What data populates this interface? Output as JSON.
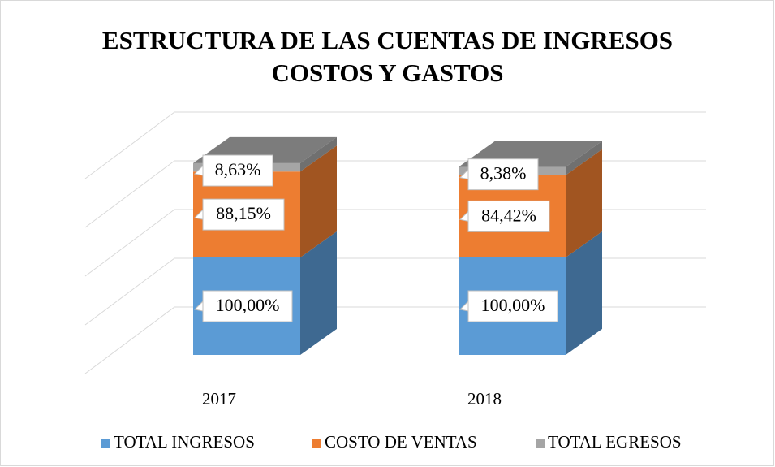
{
  "chart_data": {
    "type": "bar3d_stacked",
    "title": "ESTRUCTURA DE LAS CUENTAS DE INGRESOS COSTOS Y GASTOS",
    "categories": [
      "2017",
      "2018"
    ],
    "series": [
      {
        "name": "TOTAL INGRESOS",
        "color": "#5b9bd5",
        "values": [
          100.0,
          100.0
        ],
        "value_labels": [
          "100,00%",
          "100,00%"
        ]
      },
      {
        "name": "COSTO DE VENTAS",
        "color": "#ed7d31",
        "values": [
          88.15,
          84.42
        ],
        "value_labels": [
          "88,15%",
          "84,42%"
        ]
      },
      {
        "name": "TOTAL EGRESOS",
        "color": "#a5a5a5",
        "values": [
          8.63,
          8.38
        ],
        "value_labels": [
          "8,63%",
          "8,38%"
        ]
      }
    ],
    "ylim": [
      0,
      200
    ],
    "yticks": [
      0,
      50,
      100,
      150,
      200
    ],
    "grid": true,
    "legend": "bottom"
  }
}
